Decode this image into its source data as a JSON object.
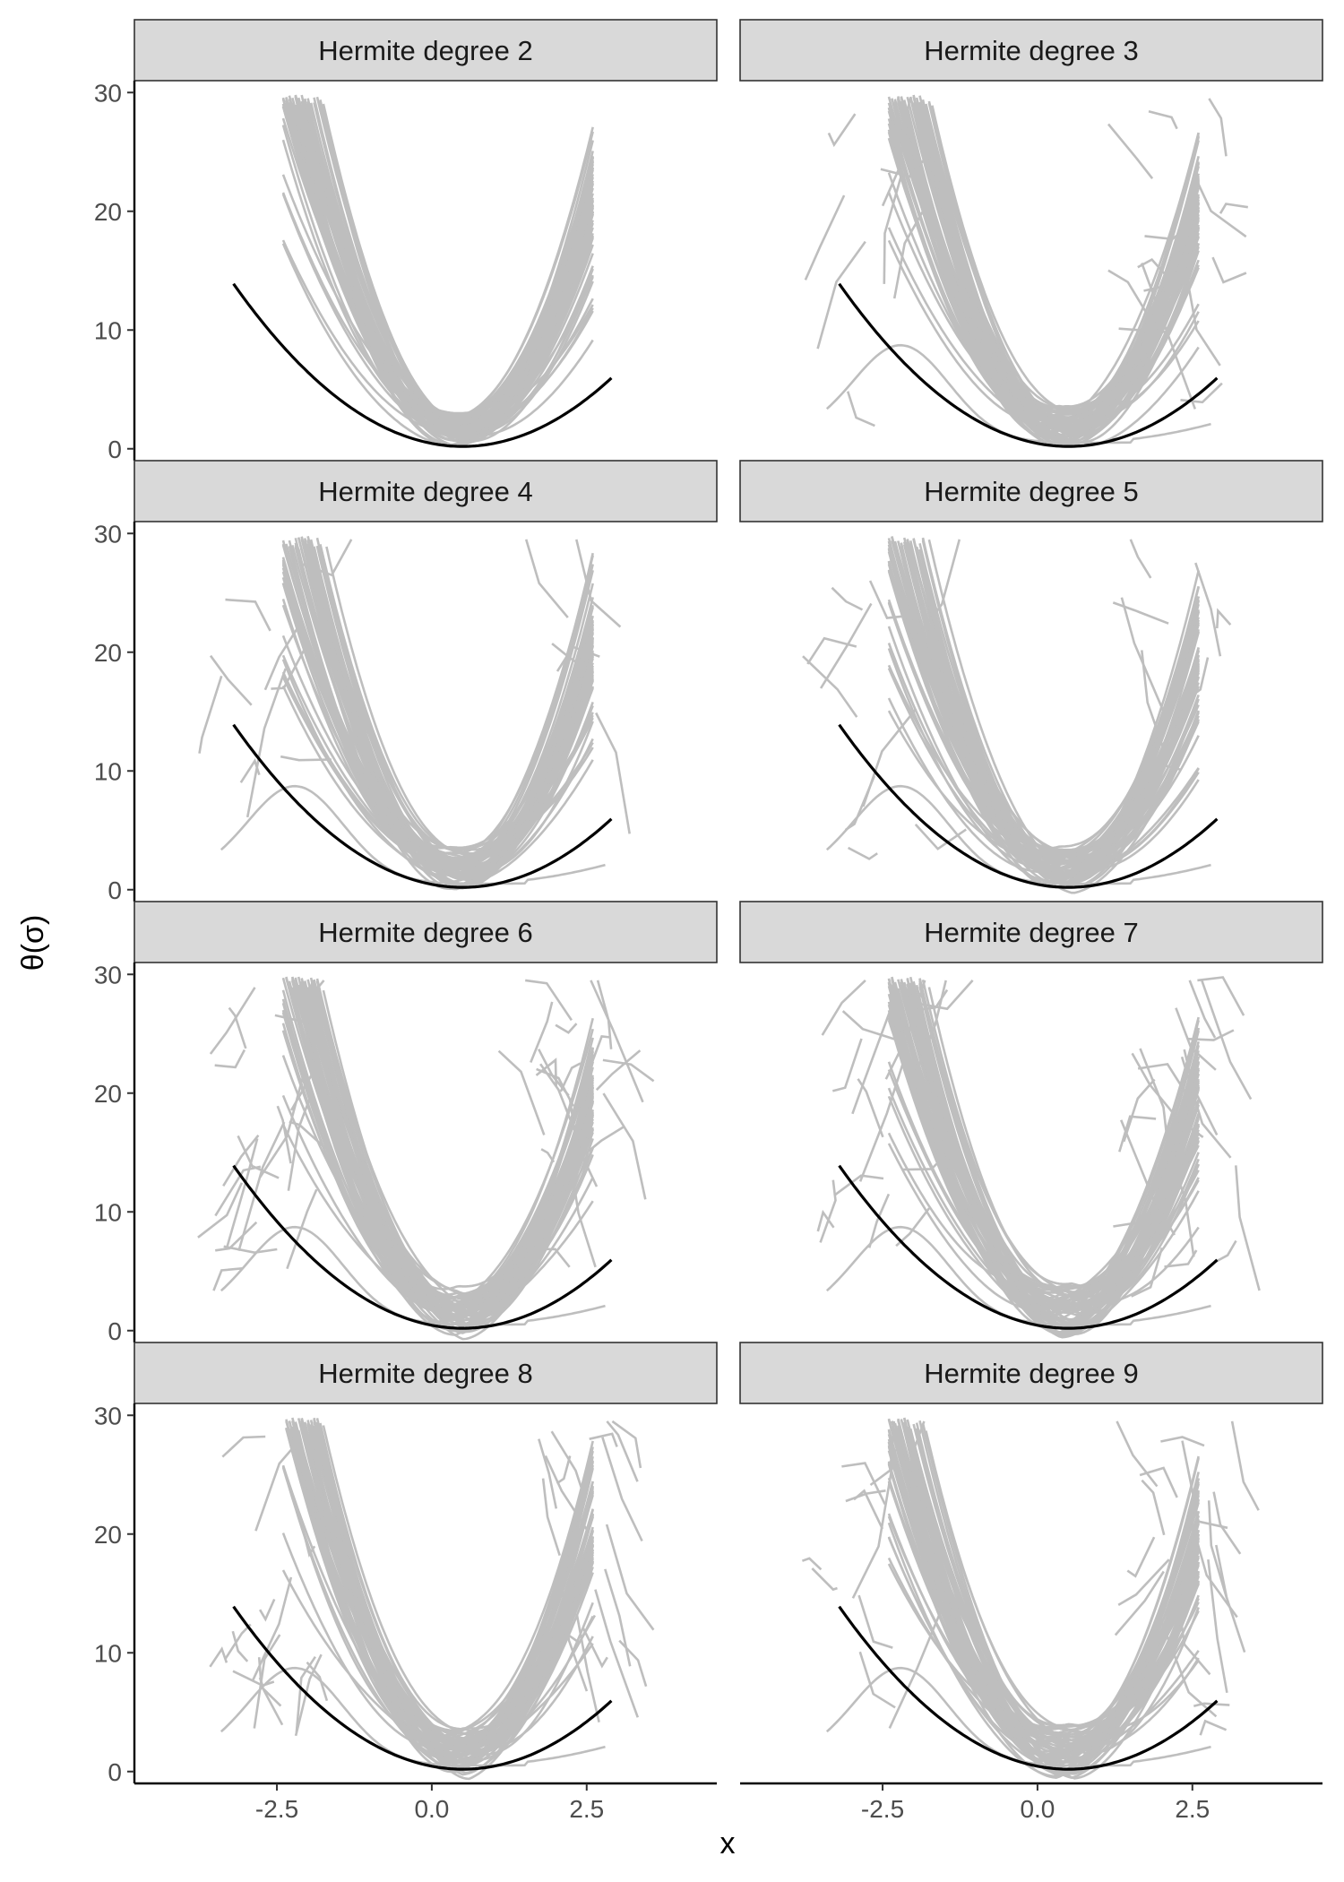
{
  "chart_data": {
    "type": "line",
    "layout": "faceted 4x2",
    "xlabel": "x",
    "ylabel": "θ(σ)",
    "xlim": [
      -4.8,
      4.6
    ],
    "ylim": [
      -1,
      31
    ],
    "x_ticks": [
      -2.5,
      0.0,
      2.5
    ],
    "x_tick_labels": [
      "-2.5",
      "0.0",
      "2.5"
    ],
    "y_ticks": [
      0,
      10,
      20,
      30
    ],
    "y_tick_labels": [
      "0",
      "10",
      "20",
      "30"
    ],
    "grid": false,
    "legend": "none",
    "colors": {
      "simulated": "#bebebe",
      "truth": "#000000",
      "strip_fill": "#d9d9d9",
      "axis": "#000000"
    },
    "true_curve": {
      "formula": "theta = (x - 0.5)^2 + 0.2",
      "x_range": [
        -3.2,
        2.9
      ],
      "color": "#000000"
    },
    "panels": [
      {
        "title": "Hermite degree 2",
        "degree": 2,
        "spread": 0.15,
        "outliers": 0
      },
      {
        "title": "Hermite degree 3",
        "degree": 3,
        "spread": 0.35,
        "outliers": 22
      },
      {
        "title": "Hermite degree 4",
        "degree": 4,
        "spread": 0.3,
        "outliers": 14
      },
      {
        "title": "Hermite degree 5",
        "degree": 5,
        "spread": 0.35,
        "outliers": 18
      },
      {
        "title": "Hermite degree 6",
        "degree": 6,
        "spread": 0.5,
        "outliers": 40
      },
      {
        "title": "Hermite degree 7",
        "degree": 7,
        "spread": 0.5,
        "outliers": 36
      },
      {
        "title": "Hermite degree 8",
        "degree": 8,
        "spread": 0.45,
        "outliers": 32
      },
      {
        "title": "Hermite degree 9",
        "degree": 9,
        "spread": 0.45,
        "outliers": 30
      }
    ],
    "simulated_curves_per_panel": 60
  }
}
